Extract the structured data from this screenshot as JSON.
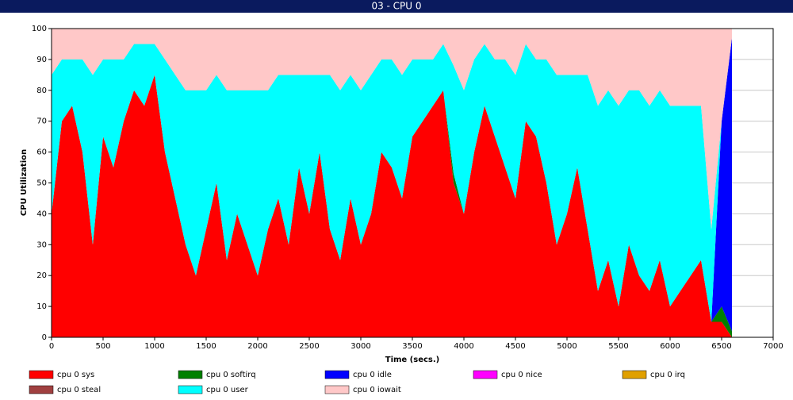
{
  "chart_data": {
    "type": "stacked_area",
    "title": "03 - CPU 0",
    "x_label": "Time (secs.)",
    "y_label": "CPU Utilization",
    "xlim": [
      0,
      7000
    ],
    "xticks": [
      0,
      500,
      1000,
      1500,
      2000,
      2500,
      3000,
      3500,
      4000,
      4500,
      5000,
      5500,
      6000,
      6500,
      7000
    ],
    "ylim": [
      0,
      100
    ],
    "yticks": [
      0,
      10,
      20,
      30,
      40,
      50,
      60,
      70,
      80,
      90,
      100
    ],
    "grid": true,
    "legend": "bottom",
    "x": [
      0,
      100,
      200,
      300,
      400,
      500,
      600,
      700,
      800,
      900,
      1000,
      1100,
      1200,
      1300,
      1400,
      1500,
      1600,
      1700,
      1800,
      1900,
      2000,
      2100,
      2200,
      2300,
      2400,
      2500,
      2600,
      2700,
      2800,
      2900,
      3000,
      3100,
      3200,
      3300,
      3400,
      3500,
      3600,
      3700,
      3800,
      3900,
      4000,
      4100,
      4200,
      4300,
      4400,
      4500,
      4600,
      4700,
      4800,
      4900,
      5000,
      5100,
      5200,
      5300,
      5400,
      5500,
      5600,
      5700,
      5800,
      5900,
      6000,
      6100,
      6200,
      6300,
      6400,
      6500,
      6600
    ],
    "series": [
      {
        "name": "cpu 0 sys",
        "color": "#ff0000",
        "values": [
          40,
          70,
          75,
          60,
          30,
          65,
          55,
          70,
          80,
          75,
          85,
          60,
          45,
          30,
          20,
          35,
          50,
          25,
          40,
          30,
          20,
          35,
          45,
          30,
          55,
          40,
          60,
          35,
          25,
          45,
          30,
          40,
          60,
          55,
          45,
          65,
          70,
          75,
          80,
          50,
          40,
          60,
          75,
          65,
          55,
          45,
          70,
          65,
          50,
          30,
          40,
          55,
          35,
          15,
          25,
          10,
          30,
          20,
          15,
          25,
          10,
          15,
          20,
          25,
          5,
          5,
          0
        ]
      },
      {
        "name": "cpu 0 softirq",
        "color": "#008000",
        "values": [
          0,
          0,
          0,
          0,
          0,
          0,
          0,
          0,
          0,
          0,
          0,
          0,
          0,
          0,
          0,
          0,
          0,
          0,
          0,
          0,
          0,
          0,
          0,
          0,
          0,
          0,
          0,
          0,
          0,
          0,
          0,
          0,
          0,
          0,
          0,
          0,
          0,
          0,
          0,
          3,
          0,
          0,
          0,
          0,
          0,
          0,
          0,
          0,
          0,
          0,
          0,
          0,
          0,
          0,
          0,
          0,
          0,
          0,
          0,
          0,
          0,
          0,
          0,
          0,
          0,
          5,
          2
        ]
      },
      {
        "name": "cpu 0 idle",
        "color": "#0000ff",
        "values": [
          0,
          0,
          0,
          0,
          0,
          0,
          0,
          0,
          0,
          0,
          0,
          0,
          0,
          0,
          0,
          0,
          0,
          0,
          0,
          0,
          0,
          0,
          0,
          0,
          0,
          0,
          0,
          0,
          0,
          0,
          0,
          0,
          0,
          0,
          0,
          0,
          0,
          0,
          0,
          0,
          0,
          0,
          0,
          0,
          0,
          0,
          0,
          0,
          0,
          0,
          0,
          0,
          0,
          0,
          0,
          0,
          0,
          0,
          0,
          0,
          0,
          0,
          0,
          0,
          0,
          60,
          95
        ]
      },
      {
        "name": "cpu 0 nice",
        "color": "#ff00ff",
        "values": [
          0,
          0,
          0,
          0,
          0,
          0,
          0,
          0,
          0,
          0,
          0,
          0,
          0,
          0,
          0,
          0,
          0,
          0,
          0,
          0,
          0,
          0,
          0,
          0,
          0,
          0,
          0,
          0,
          0,
          0,
          0,
          0,
          0,
          0,
          0,
          0,
          0,
          0,
          0,
          0,
          0,
          0,
          0,
          0,
          0,
          0,
          0,
          0,
          0,
          0,
          0,
          0,
          0,
          0,
          0,
          0,
          0,
          0,
          0,
          0,
          0,
          0,
          0,
          0,
          0,
          0,
          0
        ]
      },
      {
        "name": "cpu 0 irq",
        "color": "#e0a000",
        "values": [
          0,
          0,
          0,
          0,
          0,
          0,
          0,
          0,
          0,
          0,
          0,
          0,
          0,
          0,
          0,
          0,
          0,
          0,
          0,
          0,
          0,
          0,
          0,
          0,
          0,
          0,
          0,
          0,
          0,
          0,
          0,
          0,
          0,
          0,
          0,
          0,
          0,
          0,
          0,
          0,
          0,
          0,
          0,
          0,
          0,
          0,
          0,
          0,
          0,
          0,
          0,
          0,
          0,
          0,
          0,
          0,
          0,
          0,
          0,
          0,
          0,
          0,
          0,
          0,
          0,
          0,
          0
        ]
      },
      {
        "name": "cpu 0 steal",
        "color": "#a04040",
        "values": [
          0,
          0,
          0,
          0,
          0,
          0,
          0,
          0,
          0,
          0,
          0,
          0,
          0,
          0,
          0,
          0,
          0,
          0,
          0,
          0,
          0,
          0,
          0,
          0,
          0,
          0,
          0,
          0,
          0,
          0,
          0,
          0,
          0,
          0,
          0,
          0,
          0,
          0,
          0,
          0,
          0,
          0,
          0,
          0,
          0,
          0,
          0,
          0,
          0,
          0,
          0,
          0,
          0,
          0,
          0,
          0,
          0,
          0,
          0,
          0,
          0,
          0,
          0,
          0,
          0,
          0,
          0
        ]
      },
      {
        "name": "cpu 0 user",
        "color": "#00ffff",
        "values": [
          45,
          20,
          15,
          30,
          55,
          25,
          35,
          20,
          15,
          20,
          10,
          30,
          40,
          50,
          60,
          45,
          35,
          55,
          40,
          50,
          60,
          45,
          40,
          55,
          30,
          45,
          25,
          50,
          55,
          40,
          50,
          45,
          30,
          35,
          40,
          25,
          20,
          15,
          15,
          35,
          40,
          30,
          20,
          25,
          35,
          40,
          25,
          25,
          40,
          55,
          45,
          30,
          50,
          60,
          55,
          65,
          50,
          60,
          60,
          55,
          65,
          60,
          55,
          50,
          30,
          0,
          0
        ]
      },
      {
        "name": "cpu 0 iowait",
        "color": "#ffc8c8",
        "values": [
          15,
          10,
          10,
          10,
          15,
          10,
          10,
          10,
          5,
          5,
          5,
          10,
          15,
          20,
          20,
          20,
          15,
          20,
          20,
          20,
          20,
          20,
          15,
          15,
          15,
          15,
          15,
          15,
          20,
          15,
          20,
          15,
          10,
          10,
          15,
          10,
          10,
          10,
          5,
          12,
          20,
          10,
          5,
          10,
          10,
          15,
          5,
          10,
          10,
          15,
          15,
          15,
          15,
          25,
          20,
          25,
          20,
          20,
          25,
          20,
          25,
          25,
          25,
          25,
          65,
          30,
          3
        ]
      }
    ]
  }
}
